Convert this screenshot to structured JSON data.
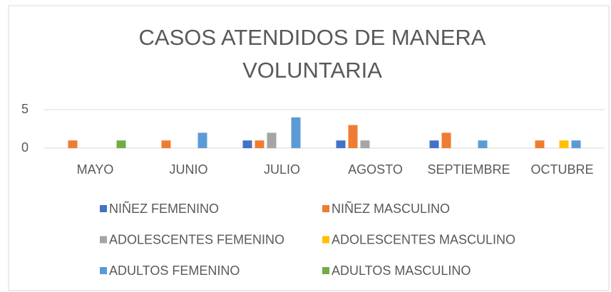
{
  "chart_data": {
    "type": "bar",
    "title": "CASOS ATENDIDOS DE MANERA VOLUNTARIA",
    "categories": [
      "MAYO",
      "JUNIO",
      "JULIO",
      "AGOSTO",
      "SEPTIEMBRE",
      "OCTUBRE"
    ],
    "series": [
      {
        "name": "NIÑEZ  FEMENINO",
        "color": "#4472c4",
        "values": [
          0,
          0,
          1,
          1,
          1,
          0
        ]
      },
      {
        "name": "NIÑEZ  MASCULINO",
        "color": "#ed7d31",
        "values": [
          1,
          1,
          1,
          3,
          2,
          1
        ]
      },
      {
        "name": "ADOLESCENTES FEMENINO",
        "color": "#a5a5a5",
        "values": [
          0,
          0,
          2,
          1,
          0,
          0
        ]
      },
      {
        "name": "ADOLESCENTES MASCULINO",
        "color": "#ffc000",
        "values": [
          0,
          0,
          0,
          0,
          0,
          1
        ]
      },
      {
        "name": "ADULTOS FEMENINO",
        "color": "#5b9bd5",
        "values": [
          0,
          2,
          4,
          0,
          1,
          1
        ]
      },
      {
        "name": "ADULTOS MASCULINO",
        "color": "#70ad47",
        "values": [
          1,
          0,
          0,
          0,
          0,
          0
        ]
      }
    ],
    "ylim": [
      0,
      5
    ],
    "yticks": [
      0,
      5
    ],
    "grid": true,
    "legend": "bottom"
  }
}
